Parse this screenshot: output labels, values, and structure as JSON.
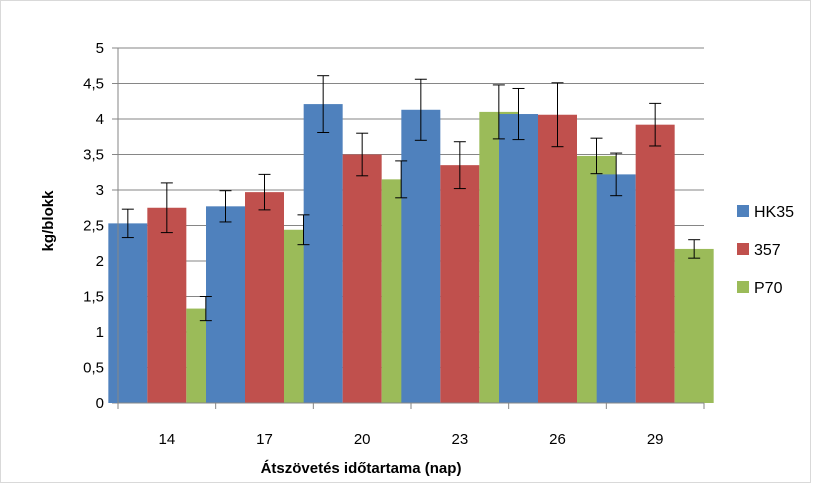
{
  "chart_data": {
    "type": "bar",
    "categories": [
      "14",
      "17",
      "20",
      "23",
      "26",
      "29"
    ],
    "series": [
      {
        "name": "HK35",
        "color": "#4f81bd",
        "values": [
          2.53,
          2.77,
          4.21,
          4.13,
          4.07,
          3.22
        ],
        "errors": [
          0.2,
          0.22,
          0.4,
          0.43,
          0.36,
          0.3
        ]
      },
      {
        "name": "357",
        "color": "#c0504d",
        "values": [
          2.75,
          2.97,
          3.5,
          3.35,
          4.06,
          3.92
        ],
        "errors": [
          0.35,
          0.25,
          0.3,
          0.33,
          0.45,
          0.3
        ]
      },
      {
        "name": "P70",
        "color": "#9bbb59",
        "values": [
          1.33,
          2.44,
          3.15,
          4.1,
          3.48,
          2.17
        ],
        "errors": [
          0.17,
          0.21,
          0.26,
          0.38,
          0.25,
          0.13
        ]
      }
    ],
    "ylim": [
      0,
      5
    ],
    "yticks": [
      "0",
      "0,5",
      "1",
      "1,5",
      "2",
      "2,5",
      "3",
      "3,5",
      "4",
      "4,5",
      "5"
    ],
    "xlabel": "Átszövetés időtartama (nap)",
    "ylabel": "kg/blokk",
    "grid": true,
    "legend_position": "right",
    "gridline_color": "#868686"
  }
}
